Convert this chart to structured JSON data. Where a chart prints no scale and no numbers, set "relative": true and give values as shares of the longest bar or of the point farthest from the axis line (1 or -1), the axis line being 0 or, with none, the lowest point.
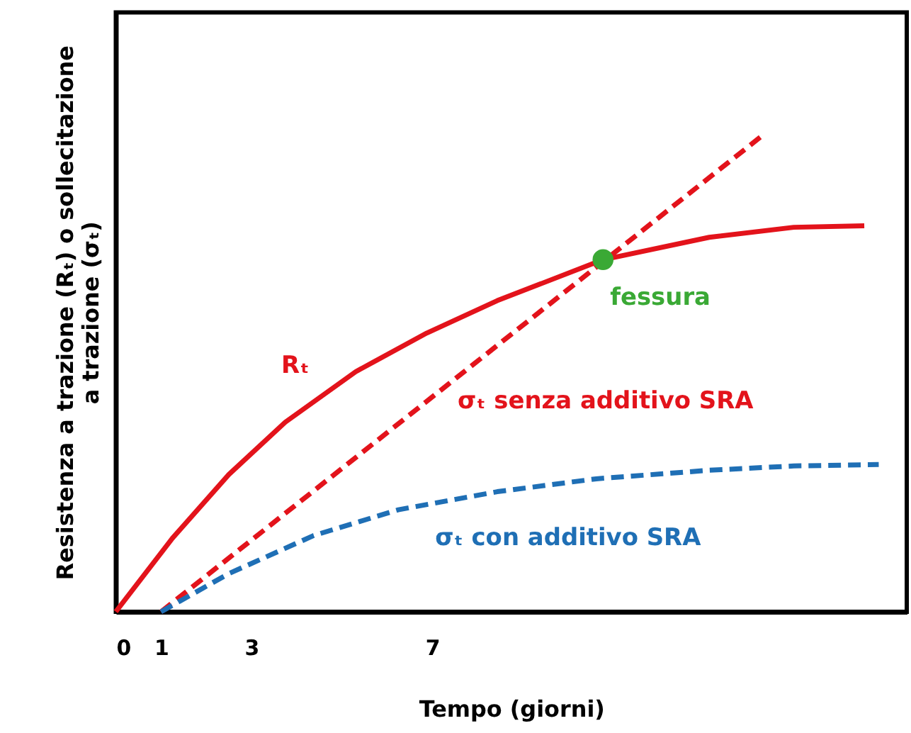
{
  "chart_data": {
    "type": "line",
    "relative": true,
    "xlabel": "Tempo (giorni)",
    "ylabel": "Resistenza a trazione (Rₜ) o sollecitazione a trazione (σₜ)",
    "xlim": [
      0,
      17.5
    ],
    "xticks": [
      0,
      1,
      3,
      7
    ],
    "tick_labels": "x",
    "grid": false,
    "series": [
      {
        "name": "Rₜ",
        "color": "#e3131b",
        "line_style": "solid",
        "x": [
          0,
          1.25,
          2.5,
          3.75,
          5.31,
          6.88,
          8.44,
          10.78,
          13.13,
          15,
          16.56
        ],
        "values": [
          0,
          0.154,
          0.288,
          0.398,
          0.504,
          0.585,
          0.653,
          0.739,
          0.786,
          0.807,
          0.81
        ]
      },
      {
        "name": "σₜ senza additivo SRA",
        "color": "#e3131b",
        "line_style": "dashed",
        "x": [
          1,
          14.31
        ],
        "values": [
          0,
          1
        ]
      },
      {
        "name": "σₜ con additivo SRA",
        "color": "#1f6fb5",
        "line_style": "dashed",
        "x": [
          1,
          2.5,
          4.38,
          6.25,
          8.44,
          10.63,
          13.13,
          15,
          16.88
        ],
        "values": [
          0,
          0.08,
          0.16,
          0.214,
          0.252,
          0.279,
          0.297,
          0.306,
          0.309
        ]
      },
      {
        "name": "fessura",
        "type": "scatter",
        "color": "#3aa935",
        "x": [
          10.78
        ],
        "values": [
          0.739
        ]
      }
    ]
  }
}
